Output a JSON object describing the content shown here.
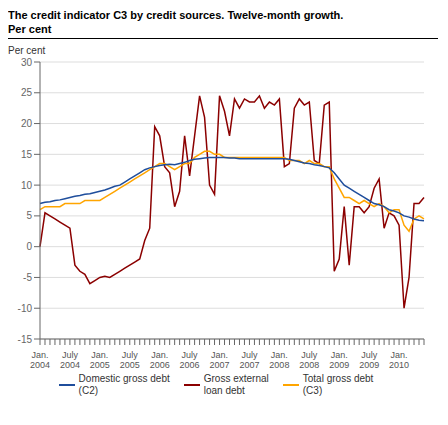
{
  "chart_data": {
    "type": "line",
    "title": "The credit indicator C3 by credit sources. Twelve-month growth.",
    "subtitle": "Per cent",
    "ylabel": "Per cent",
    "ylim": [
      -15,
      30
    ],
    "yticks": [
      -15,
      -10,
      -5,
      0,
      5,
      10,
      15,
      20,
      25,
      30
    ],
    "grid": true,
    "legend": "bottom",
    "categories": [
      "Jan.\n2004",
      null,
      null,
      null,
      null,
      null,
      "July\n2004",
      null,
      null,
      null,
      null,
      null,
      "Jan.\n2005",
      null,
      null,
      null,
      null,
      null,
      "July\n2005",
      null,
      null,
      null,
      null,
      null,
      "Jan.\n2006",
      null,
      null,
      null,
      null,
      null,
      "July\n2006",
      null,
      null,
      null,
      null,
      null,
      "Jan.\n2007",
      null,
      null,
      null,
      null,
      null,
      "July\n2007",
      null,
      null,
      null,
      null,
      null,
      "Jan.\n2008",
      null,
      null,
      null,
      null,
      null,
      "July\n2008",
      null,
      null,
      null,
      null,
      null,
      "Jan.\n2009",
      null,
      null,
      null,
      null,
      null,
      "July\n2009",
      null,
      null,
      null,
      null,
      null,
      "Jan.\n2010",
      null,
      null,
      null,
      null,
      null
    ],
    "series": [
      {
        "name": "Gross external\nloan debt",
        "color": "#8B0000",
        "values": [
          0.0,
          5.5,
          5.0,
          4.5,
          4.0,
          3.5,
          3.0,
          -3.0,
          -4.0,
          -4.5,
          -6.0,
          -5.5,
          -5.0,
          -4.8,
          -5.0,
          -4.5,
          -4.0,
          -3.5,
          -3.0,
          -2.5,
          -2.0,
          1.0,
          3.0,
          19.5,
          18.0,
          13.0,
          12.0,
          6.5,
          9.0,
          18.0,
          11.5,
          18.0,
          24.5,
          21.0,
          10.0,
          8.5,
          24.5,
          22.0,
          18.0,
          24.0,
          22.5,
          24.0,
          23.5,
          23.5,
          24.5,
          22.5,
          23.5,
          23.0,
          24.0,
          13.0,
          13.5,
          22.5,
          24.0,
          23.0,
          23.5,
          14.0,
          13.5,
          23.0,
          23.5,
          -4.0,
          -2.0,
          6.5,
          -3.0,
          6.5,
          6.5,
          5.5,
          6.5,
          9.5,
          11.0,
          3.0,
          5.5,
          5.0,
          3.5,
          -10.0,
          -5.0,
          7.0,
          7.0,
          8.0
        ]
      },
      {
        "name": "Total gross debt\n(C3)",
        "color": "#FFA500",
        "values": [
          6.0,
          6.5,
          6.5,
          6.5,
          6.5,
          7.0,
          7.0,
          7.0,
          7.0,
          7.5,
          7.5,
          7.5,
          7.5,
          8.0,
          8.5,
          9.0,
          9.5,
          10.0,
          10.5,
          11.0,
          11.5,
          12.0,
          12.5,
          13.0,
          13.5,
          13.5,
          13.0,
          12.5,
          13.0,
          13.5,
          13.5,
          14.5,
          15.0,
          15.5,
          15.5,
          15.0,
          15.0,
          14.5,
          14.5,
          14.5,
          14.5,
          14.5,
          14.5,
          14.5,
          14.5,
          14.5,
          14.5,
          14.5,
          14.5,
          14.5,
          14.0,
          14.0,
          14.0,
          13.5,
          14.0,
          13.5,
          13.5,
          13.0,
          13.0,
          11.0,
          9.5,
          8.0,
          8.0,
          7.5,
          7.0,
          7.5,
          7.0,
          6.5,
          7.0,
          6.5,
          5.5,
          6.0,
          6.0,
          3.5,
          2.5,
          4.5,
          5.0,
          4.5
        ]
      },
      {
        "name": "Domestic gross debt\n(C2)",
        "color": "#1F4E9C",
        "values": [
          7.0,
          7.2,
          7.3,
          7.5,
          7.6,
          7.8,
          8.0,
          8.2,
          8.3,
          8.5,
          8.6,
          8.8,
          9.0,
          9.2,
          9.5,
          9.8,
          10.0,
          10.5,
          11.0,
          11.5,
          12.0,
          12.5,
          12.8,
          13.0,
          13.2,
          13.3,
          13.4,
          13.3,
          13.5,
          13.7,
          14.0,
          14.2,
          14.3,
          14.4,
          14.5,
          14.5,
          14.5,
          14.5,
          14.4,
          14.4,
          14.3,
          14.3,
          14.3,
          14.3,
          14.3,
          14.3,
          14.3,
          14.3,
          14.3,
          14.3,
          14.2,
          14.0,
          13.8,
          13.6,
          13.5,
          13.3,
          13.2,
          13.0,
          12.8,
          12.0,
          11.0,
          10.0,
          9.5,
          9.0,
          8.5,
          8.0,
          7.5,
          7.0,
          6.8,
          6.5,
          6.0,
          5.8,
          5.5,
          5.0,
          4.8,
          4.5,
          4.3,
          4.2
        ]
      }
    ]
  }
}
